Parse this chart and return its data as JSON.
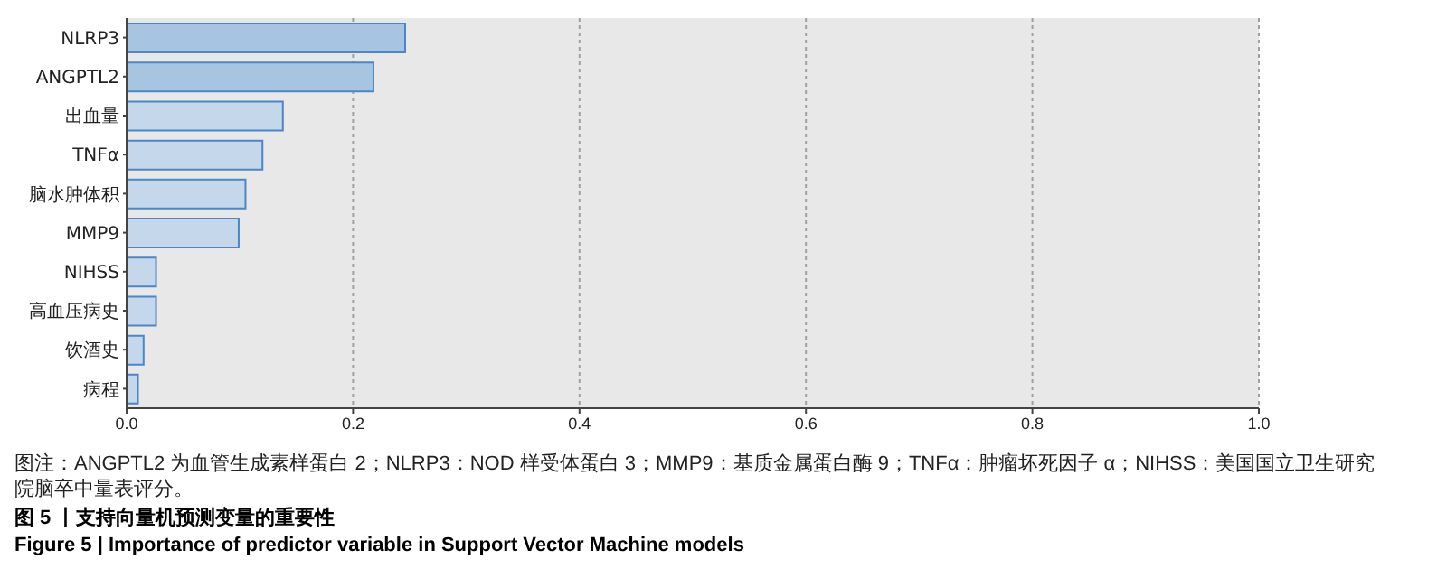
{
  "chart_data": {
    "type": "bar",
    "orientation": "horizontal",
    "title": "图 5 丨支持向量机预测变量的重要性",
    "subtitle": "Figure 5 | Importance of predictor variable in Support Vector Machine models",
    "categories": [
      "NLRP3",
      "ANGPTL2",
      "出血量",
      "TNFα",
      "脑水肿体积",
      "MMP9",
      "NIHSS",
      "高血压病史",
      "饮酒史",
      "病程"
    ],
    "values": [
      0.246,
      0.218,
      0.138,
      0.12,
      0.105,
      0.099,
      0.026,
      0.026,
      0.015,
      0.01
    ],
    "colors": [
      "#a7c4e0",
      "#a7c4e0",
      "#c5d7ea",
      "#c5d7ea",
      "#c5d7ea",
      "#c5d7ea",
      "#c5d7ea",
      "#c5d7ea",
      "#c5d7ea",
      "#c5d7ea"
    ],
    "xlim": [
      0,
      1
    ],
    "xticks": [
      {
        "value": 0,
        "label": "0.0"
      },
      0.2,
      0.4,
      0.6,
      0.8,
      {
        "value": 1,
        "label": "1.0"
      }
    ],
    "grid": "x",
    "annotations": [
      "图注：ANGPTL2 为血管生成素样蛋白 2；NLRP3：NOD 样受体蛋白 3；MMP9：基质金属蛋白酶 9；TNFα：肿瘤坏死因子 α；NIHSS：美国国立卫生研究院脑卒中量表评分。"
    ]
  }
}
